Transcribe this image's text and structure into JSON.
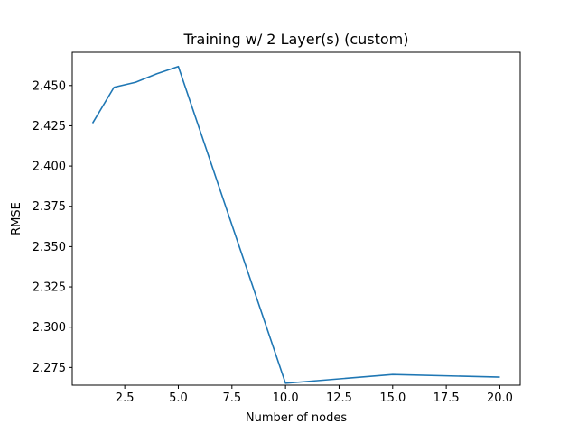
{
  "chart_data": {
    "type": "line",
    "title": "Training w/ 2 Layer(s) (custom)",
    "xlabel": "Number of nodes",
    "ylabel": "RMSE",
    "xlim": [
      0.05,
      20.95
    ],
    "ylim": [
      2.264,
      2.4706
    ],
    "xticks": [
      2.5,
      5.0,
      7.5,
      10.0,
      12.5,
      15.0,
      17.5,
      20.0
    ],
    "xtick_labels": [
      "2.5",
      "5.0",
      "7.5",
      "10.0",
      "12.5",
      "15.0",
      "17.5",
      "20.0"
    ],
    "yticks": [
      2.275,
      2.3,
      2.325,
      2.35,
      2.375,
      2.4,
      2.425,
      2.45
    ],
    "ytick_labels": [
      "2.275",
      "2.300",
      "2.325",
      "2.350",
      "2.375",
      "2.400",
      "2.425",
      "2.450"
    ],
    "grid": false,
    "series": [
      {
        "color": "#1f77b4",
        "x": [
          1,
          2,
          3,
          4,
          5,
          10,
          15,
          20
        ],
        "y": [
          2.4266,
          2.4489,
          2.452,
          2.4573,
          2.4618,
          2.2652,
          2.2706,
          2.269
        ]
      }
    ]
  }
}
